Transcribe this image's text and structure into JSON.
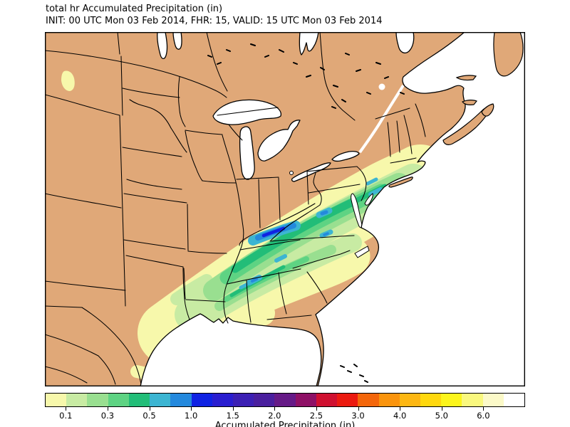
{
  "header": {
    "title_line1": "total hr Accumulated Precipitation (in)",
    "title_line2": "INIT: 00 UTC Mon 03 Feb 2014, FHR: 15, VALID: 15 UTC Mon 03 Feb 2014"
  },
  "map": {
    "land_color": "#e0a878",
    "water_color": "#ffffff",
    "boundary_color": "#000000",
    "region": "Eastern North America: US state, Canadian province and Mexico boundaries with Great Lakes, Atlantic Ocean and Gulf of Mexico"
  },
  "colorbar": {
    "label": "Accumulated Precipitation (in)",
    "tick_labels": [
      "0.1",
      "0.3",
      "0.5",
      "1.0",
      "1.5",
      "2.0",
      "2.5",
      "3.0",
      "4.0",
      "5.0",
      "6.0"
    ],
    "tick_positions_pct": [
      4.348,
      13.043,
      21.739,
      30.435,
      39.13,
      47.826,
      56.522,
      65.217,
      73.913,
      82.609,
      91.304
    ],
    "segment_colors": [
      "#f7f8ab",
      "#c8eba3",
      "#99df90",
      "#5ed383",
      "#22bd78",
      "#3cb5d2",
      "#2489dd",
      "#1023e3",
      "#2a1ed0",
      "#3c20b4",
      "#4a1f9e",
      "#661a87",
      "#8e1166",
      "#cf1030",
      "#eb1a10",
      "#f3660b",
      "#fa940d",
      "#fdb713",
      "#ffd80e",
      "#fcf51c",
      "#f9f87e",
      "#fbf9c8",
      "#ffffff"
    ],
    "segment_levels_in": [
      0.01,
      0.1,
      0.2,
      0.3,
      0.4,
      0.5,
      0.75,
      1.0,
      1.25,
      1.5,
      1.75,
      2.0,
      2.25,
      2.5,
      2.75,
      3.0,
      3.5,
      4.0,
      4.5,
      5.0,
      5.5,
      6.0,
      7.0,
      8.0
    ]
  },
  "chart_data": {
    "type": "heatmap",
    "title": "total hr Accumulated Precipitation (in)",
    "init_time": "00 UTC Mon 03 Feb 2014",
    "forecast_hour": 15,
    "valid_time": "15 UTC Mon 03 Feb 2014",
    "units": "in",
    "levels": [
      0.01,
      0.1,
      0.2,
      0.3,
      0.4,
      0.5,
      0.75,
      1.0,
      1.25,
      1.5,
      1.75,
      2.0,
      2.25,
      2.5,
      2.75,
      3.0,
      3.5,
      4.0,
      4.5,
      5.0,
      5.5,
      6.0
    ],
    "colorbar_ticks": [
      0.1,
      0.3,
      0.5,
      1.0,
      1.5,
      2.0,
      2.5,
      3.0,
      4.0,
      5.0,
      6.0
    ],
    "legend_position": "bottom",
    "features": [
      {
        "name": "main-precip-band",
        "extent": "NE Texas and Louisiana northeastward across Tennessee/Kentucky, West Virginia, Virginia and the Mid-Atlantic into southern New England",
        "peak_value_in": 1.25,
        "peak_location": "Tennessee-Kentucky border"
      },
      {
        "name": "southern-ridge",
        "extent": "central Mississippi and Alabama into the western Carolinas",
        "peak_value_in": 1.0
      },
      {
        "name": "offshore-atlantic-band",
        "extent": "Atlantic Ocean southeast of the Carolinas extending to the northeast map edge",
        "peak_value_in": 1.25
      },
      {
        "name": "coastal-georgia-band",
        "extent": "nearshore Atlantic off Georgia and South Carolina",
        "peak_value_in": 0.3
      },
      {
        "name": "gulf-of-mexico-streaks",
        "extent": "western Gulf of Mexico",
        "peak_value_in": 0.2
      },
      {
        "name": "montana-spot",
        "extent": "isolated light precipitation spot in Montana",
        "peak_value_in": 0.1
      }
    ]
  }
}
